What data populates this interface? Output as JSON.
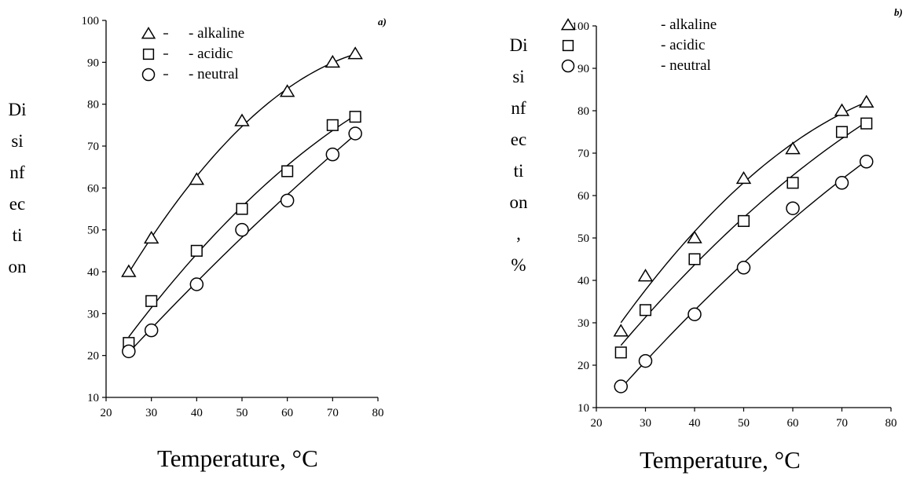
{
  "chart_data": [
    {
      "type": "scatter",
      "panel_label": "a)",
      "xlabel": "Temperature, °C",
      "ylabel_lines": [
        "Di",
        "si",
        "nf",
        "ec",
        "ti",
        "on"
      ],
      "xlim": [
        20,
        80
      ],
      "ylim": [
        10,
        100
      ],
      "xticks": [
        20,
        30,
        40,
        50,
        60,
        70,
        80
      ],
      "yticks": [
        10,
        20,
        30,
        40,
        50,
        60,
        70,
        80,
        90,
        100
      ],
      "legend_placement": "top-left",
      "x": [
        25,
        30,
        40,
        50,
        60,
        70,
        75
      ],
      "series": [
        {
          "name": "- alkaline",
          "marker": "triangle",
          "values": [
            40,
            48,
            62,
            76,
            83,
            90,
            92
          ]
        },
        {
          "name": "- acidic",
          "marker": "square",
          "values": [
            23,
            33,
            45,
            55,
            64,
            75,
            77
          ]
        },
        {
          "name": "- neutral",
          "marker": "circle",
          "values": [
            21,
            26,
            37,
            50,
            57,
            68,
            73
          ]
        }
      ]
    },
    {
      "type": "scatter",
      "panel_label": "b)",
      "xlabel": "Temperature,  °C",
      "ylabel_lines": [
        "Di",
        "si",
        "nf",
        "ec",
        "ti",
        "on",
        ",",
        "%"
      ],
      "xlim": [
        20,
        80
      ],
      "ylim": [
        10,
        100
      ],
      "xticks": [
        20,
        30,
        40,
        50,
        60,
        70,
        80
      ],
      "yticks": [
        10,
        20,
        30,
        40,
        50,
        60,
        70,
        80,
        90,
        100
      ],
      "legend_placement": "top-left",
      "x": [
        25,
        30,
        40,
        50,
        60,
        70,
        75
      ],
      "series": [
        {
          "name": "- alkaline",
          "marker": "triangle",
          "values": [
            28,
            41,
            50,
            64,
            71,
            80,
            82
          ]
        },
        {
          "name": "- acidic",
          "marker": "square",
          "values": [
            23,
            33,
            45,
            54,
            63,
            75,
            77
          ]
        },
        {
          "name": "- neutral",
          "marker": "circle",
          "values": [
            15,
            21,
            32,
            43,
            57,
            63,
            68
          ]
        }
      ]
    }
  ],
  "colors": {
    "axis": "#000000",
    "marker_stroke": "#000000",
    "marker_fill": "#ffffff"
  }
}
